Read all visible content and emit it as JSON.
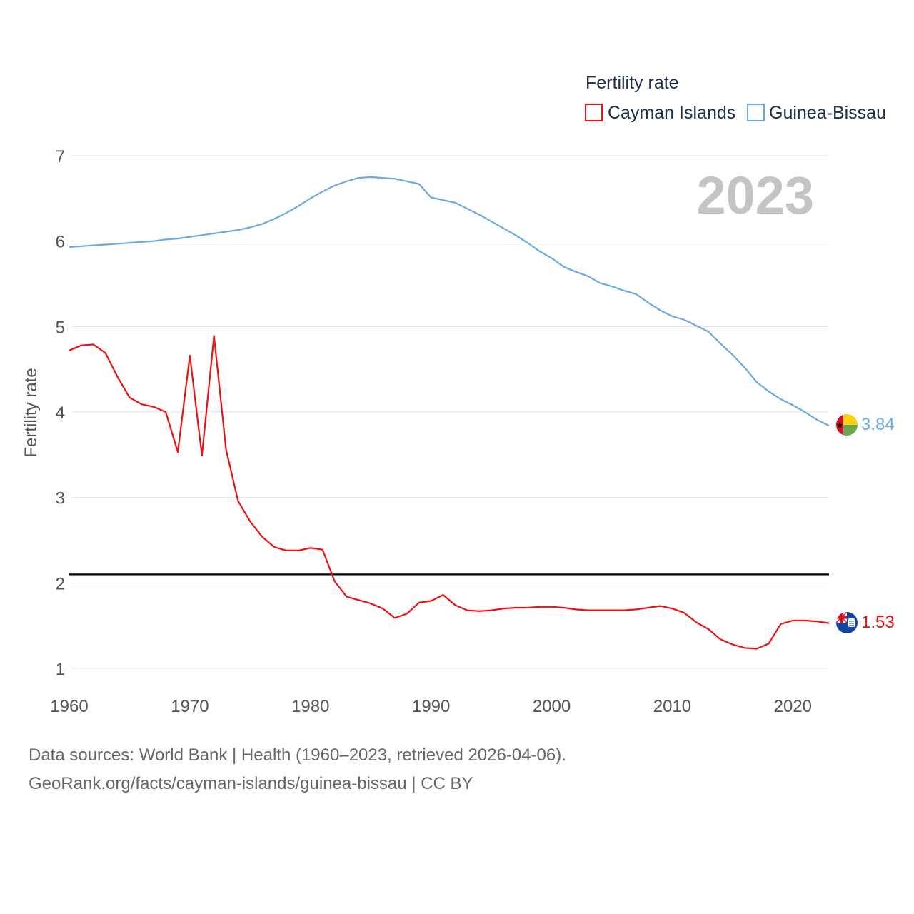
{
  "chart_data": {
    "type": "line",
    "title": "",
    "legend_title": "Fertility rate",
    "ylabel": "Fertility rate",
    "xlabel": "",
    "year_label": "2023",
    "xlim": [
      1960,
      2023
    ],
    "ylim": [
      0.9,
      7.0
    ],
    "x_ticks": [
      1960,
      1970,
      1980,
      1990,
      2000,
      2010,
      2020
    ],
    "y_ticks": [
      1,
      2,
      3,
      4,
      5,
      6,
      7
    ],
    "reference_line": {
      "y": 2.1
    },
    "grid": true,
    "legend_position": "top-right",
    "series": [
      {
        "name": "Cayman Islands",
        "color": "#ee1111",
        "end_label": "1.53",
        "flag": "cayman-islands-flag",
        "points": [
          [
            1960,
            4.72
          ],
          [
            1961,
            4.78
          ],
          [
            1962,
            4.79
          ],
          [
            1963,
            4.69
          ],
          [
            1964,
            4.41
          ],
          [
            1965,
            4.17
          ],
          [
            1966,
            4.09
          ],
          [
            1967,
            4.06
          ],
          [
            1968,
            4.0
          ],
          [
            1969,
            3.53
          ],
          [
            1970,
            4.66
          ],
          [
            1971,
            3.49
          ],
          [
            1972,
            4.89
          ],
          [
            1973,
            3.56
          ],
          [
            1974,
            2.96
          ],
          [
            1975,
            2.72
          ],
          [
            1976,
            2.54
          ],
          [
            1977,
            2.42
          ],
          [
            1978,
            2.38
          ],
          [
            1979,
            2.38
          ],
          [
            1980,
            2.41
          ],
          [
            1981,
            2.39
          ],
          [
            1982,
            2.02
          ],
          [
            1983,
            1.84
          ],
          [
            1984,
            1.8
          ],
          [
            1985,
            1.76
          ],
          [
            1986,
            1.7
          ],
          [
            1987,
            1.59
          ],
          [
            1988,
            1.64
          ],
          [
            1989,
            1.77
          ],
          [
            1990,
            1.79
          ],
          [
            1991,
            1.86
          ],
          [
            1992,
            1.74
          ],
          [
            1993,
            1.68
          ],
          [
            1994,
            1.67
          ],
          [
            1995,
            1.68
          ],
          [
            1996,
            1.7
          ],
          [
            1997,
            1.71
          ],
          [
            1998,
            1.71
          ],
          [
            1999,
            1.72
          ],
          [
            2000,
            1.72
          ],
          [
            2001,
            1.71
          ],
          [
            2002,
            1.69
          ],
          [
            2003,
            1.68
          ],
          [
            2004,
            1.68
          ],
          [
            2005,
            1.68
          ],
          [
            2006,
            1.68
          ],
          [
            2007,
            1.69
          ],
          [
            2008,
            1.71
          ],
          [
            2009,
            1.73
          ],
          [
            2010,
            1.7
          ],
          [
            2011,
            1.65
          ],
          [
            2012,
            1.54
          ],
          [
            2013,
            1.46
          ],
          [
            2014,
            1.34
          ],
          [
            2015,
            1.28
          ],
          [
            2016,
            1.24
          ],
          [
            2017,
            1.23
          ],
          [
            2018,
            1.29
          ],
          [
            2019,
            1.52
          ],
          [
            2020,
            1.56
          ],
          [
            2021,
            1.56
          ],
          [
            2022,
            1.55
          ],
          [
            2023,
            1.53
          ]
        ]
      },
      {
        "name": "Guinea-Bissau",
        "color": "#6aaae4",
        "end_label": "3.84",
        "flag": "guinea-bissau-flag",
        "points": [
          [
            1960,
            5.93
          ],
          [
            1961,
            5.94
          ],
          [
            1962,
            5.95
          ],
          [
            1963,
            5.96
          ],
          [
            1964,
            5.97
          ],
          [
            1965,
            5.98
          ],
          [
            1966,
            5.99
          ],
          [
            1967,
            6.0
          ],
          [
            1968,
            6.02
          ],
          [
            1969,
            6.03
          ],
          [
            1970,
            6.05
          ],
          [
            1971,
            6.07
          ],
          [
            1972,
            6.09
          ],
          [
            1973,
            6.11
          ],
          [
            1974,
            6.13
          ],
          [
            1975,
            6.16
          ],
          [
            1976,
            6.2
          ],
          [
            1977,
            6.26
          ],
          [
            1978,
            6.33
          ],
          [
            1979,
            6.41
          ],
          [
            1980,
            6.5
          ],
          [
            1981,
            6.58
          ],
          [
            1982,
            6.65
          ],
          [
            1983,
            6.7
          ],
          [
            1984,
            6.74
          ],
          [
            1985,
            6.75
          ],
          [
            1986,
            6.74
          ],
          [
            1987,
            6.73
          ],
          [
            1988,
            6.7
          ],
          [
            1989,
            6.67
          ],
          [
            1990,
            6.51
          ],
          [
            1991,
            6.48
          ],
          [
            1992,
            6.45
          ],
          [
            1993,
            6.38
          ],
          [
            1994,
            6.31
          ],
          [
            1995,
            6.23
          ],
          [
            1996,
            6.15
          ],
          [
            1997,
            6.07
          ],
          [
            1998,
            5.98
          ],
          [
            1999,
            5.88
          ],
          [
            2000,
            5.8
          ],
          [
            2001,
            5.7
          ],
          [
            2002,
            5.64
          ],
          [
            2003,
            5.59
          ],
          [
            2004,
            5.51
          ],
          [
            2005,
            5.47
          ],
          [
            2006,
            5.42
          ],
          [
            2007,
            5.38
          ],
          [
            2008,
            5.28
          ],
          [
            2009,
            5.19
          ],
          [
            2010,
            5.12
          ],
          [
            2011,
            5.08
          ],
          [
            2012,
            5.01
          ],
          [
            2013,
            4.94
          ],
          [
            2014,
            4.8
          ],
          [
            2015,
            4.67
          ],
          [
            2016,
            4.52
          ],
          [
            2017,
            4.35
          ],
          [
            2018,
            4.24
          ],
          [
            2019,
            4.15
          ],
          [
            2020,
            4.08
          ],
          [
            2021,
            4.0
          ],
          [
            2022,
            3.91
          ],
          [
            2023,
            3.84
          ]
        ]
      }
    ]
  },
  "footer": {
    "line1": "Data sources: World Bank | Health (1960–2023, retrieved 2026-04-06).",
    "line2": "GeoRank.org/facts/cayman-islands/guinea-bissau | CC BY"
  }
}
